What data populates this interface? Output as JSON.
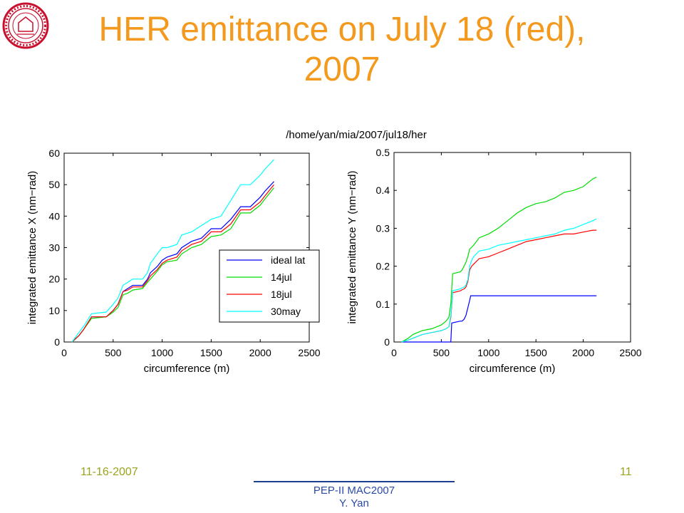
{
  "slide": {
    "title": "HER emittance on July 18 (red), 2007",
    "figure_title": "/home/yan/mia/2007/jul18/her",
    "footer_left": "11-16-2007",
    "footer_right": "11",
    "footer_center_line1": "PEP-II MAC2007",
    "footer_center_line2": "Y. Yan"
  },
  "colors": {
    "title": "#f39a1e",
    "footer_side": "#9aa41c",
    "footer_center": "#2b4aa8",
    "ideal lat": "#0000ff",
    "14jul": "#00dd00",
    "18jul": "#ff0000",
    "30may": "#00ffff",
    "logo": "#c8102e"
  },
  "logo": {
    "icon": "institution-seal-logo"
  },
  "chart_data": [
    {
      "type": "line",
      "xlabel": "circumference (m)",
      "ylabel": "integrated emittance X (nm−rad)",
      "xlim": [
        0,
        2500
      ],
      "ylim": [
        0,
        60
      ],
      "xticks": [
        "0",
        "500",
        "1000",
        "1500",
        "2000",
        "2500"
      ],
      "yticks": [
        "0",
        "10",
        "20",
        "30",
        "40",
        "50",
        "60"
      ],
      "grid": false,
      "legend": "lower-right",
      "series": [
        {
          "name": "ideal lat",
          "x": [
            80,
            150,
            200,
            280,
            430,
            500,
            550,
            600,
            650,
            700,
            800,
            850,
            880,
            950,
            1000,
            1050,
            1150,
            1200,
            1300,
            1400,
            1500,
            1600,
            1700,
            1800,
            1900,
            2000,
            2050,
            2140
          ],
          "values": [
            0,
            2,
            4,
            8,
            8,
            10,
            12,
            16,
            17,
            18,
            18,
            20,
            22,
            24,
            26,
            27,
            28,
            30,
            32,
            33,
            36,
            36,
            39,
            43,
            43,
            46,
            48,
            51
          ]
        },
        {
          "name": "14jul",
          "x": [
            80,
            150,
            200,
            280,
            430,
            500,
            550,
            600,
            650,
            700,
            800,
            850,
            880,
            950,
            1000,
            1050,
            1150,
            1200,
            1300,
            1400,
            1500,
            1600,
            1700,
            1800,
            1900,
            2000,
            2050,
            2140
          ],
          "values": [
            0,
            2,
            4,
            7.5,
            8,
            9.5,
            11,
            15,
            15.5,
            16.5,
            17,
            19,
            20,
            22.5,
            24.5,
            25.5,
            26,
            28,
            30,
            31,
            33.5,
            34,
            36,
            41,
            41,
            43.5,
            45.5,
            49
          ]
        },
        {
          "name": "18jul",
          "x": [
            80,
            150,
            200,
            280,
            430,
            500,
            550,
            600,
            650,
            700,
            800,
            850,
            880,
            950,
            1000,
            1050,
            1150,
            1200,
            1300,
            1400,
            1500,
            1600,
            1700,
            1800,
            1900,
            2000,
            2050,
            2140
          ],
          "values": [
            0,
            2,
            4,
            8,
            8,
            10,
            12,
            16,
            16.5,
            17.5,
            17.5,
            19.5,
            21,
            23,
            25,
            26,
            27,
            29,
            31,
            32,
            35,
            35,
            37.5,
            42,
            42,
            44.5,
            46.5,
            50
          ]
        },
        {
          "name": "30may",
          "x": [
            80,
            150,
            200,
            280,
            430,
            500,
            550,
            600,
            650,
            700,
            800,
            850,
            880,
            950,
            1000,
            1050,
            1150,
            1200,
            1300,
            1400,
            1500,
            1600,
            1700,
            1800,
            1900,
            2000,
            2050,
            2140
          ],
          "values": [
            0,
            3,
            5,
            9,
            9.5,
            12,
            14,
            18,
            19,
            20,
            20,
            22,
            25,
            28,
            30,
            30,
            31,
            34,
            35,
            37,
            39,
            40,
            45,
            50,
            50,
            53,
            55,
            58
          ]
        }
      ]
    },
    {
      "type": "line",
      "xlabel": "circumference (m)",
      "ylabel": "integrated emittance Y (nm−rad)",
      "xlim": [
        0,
        2500
      ],
      "ylim": [
        0,
        0.5
      ],
      "xticks": [
        "0",
        "500",
        "1000",
        "1500",
        "2000",
        "2500"
      ],
      "yticks": [
        "0",
        "0.1",
        "0.2",
        "0.3",
        "0.4",
        "0.5"
      ],
      "grid": false,
      "series": [
        {
          "name": "ideal lat",
          "x": [
            80,
            570,
            600,
            610,
            700,
            720,
            740,
            760,
            780,
            800,
            810,
            2140
          ],
          "values": [
            0,
            0,
            0,
            0.05,
            0.055,
            0.055,
            0.06,
            0.07,
            0.09,
            0.11,
            0.122,
            0.122
          ]
        },
        {
          "name": "14jul",
          "x": [
            80,
            150,
            200,
            300,
            400,
            500,
            550,
            580,
            600,
            610,
            620,
            700,
            720,
            740,
            760,
            780,
            800,
            820,
            840,
            900,
            1000,
            1100,
            1200,
            1300,
            1400,
            1500,
            1600,
            1700,
            1800,
            1900,
            2000,
            2100,
            2140
          ],
          "values": [
            0,
            0.01,
            0.02,
            0.03,
            0.035,
            0.045,
            0.055,
            0.065,
            0.1,
            0.14,
            0.18,
            0.185,
            0.19,
            0.2,
            0.21,
            0.225,
            0.245,
            0.25,
            0.255,
            0.275,
            0.285,
            0.3,
            0.32,
            0.34,
            0.355,
            0.365,
            0.37,
            0.38,
            0.395,
            0.4,
            0.41,
            0.43,
            0.435
          ]
        },
        {
          "name": "18jul",
          "x": [
            80,
            150,
            200,
            300,
            400,
            500,
            550,
            580,
            600,
            610,
            620,
            700,
            720,
            740,
            760,
            780,
            800,
            820,
            840,
            900,
            1000,
            1100,
            1200,
            1300,
            1400,
            1500,
            1600,
            1700,
            1800,
            1900,
            2000,
            2100,
            2140
          ],
          "values": [
            0,
            0.005,
            0.01,
            0.02,
            0.025,
            0.03,
            0.035,
            0.04,
            0.065,
            0.095,
            0.13,
            0.135,
            0.138,
            0.14,
            0.145,
            0.16,
            0.19,
            0.2,
            0.205,
            0.22,
            0.225,
            0.235,
            0.245,
            0.255,
            0.265,
            0.27,
            0.275,
            0.28,
            0.285,
            0.285,
            0.29,
            0.295,
            0.295
          ]
        },
        {
          "name": "30may",
          "x": [
            80,
            150,
            200,
            300,
            400,
            500,
            550,
            580,
            600,
            610,
            620,
            700,
            720,
            740,
            760,
            780,
            800,
            820,
            840,
            900,
            1000,
            1100,
            1200,
            1300,
            1400,
            1500,
            1600,
            1700,
            1800,
            1900,
            2000,
            2100,
            2140
          ],
          "values": [
            0,
            0.005,
            0.01,
            0.02,
            0.025,
            0.03,
            0.035,
            0.04,
            0.07,
            0.1,
            0.135,
            0.14,
            0.143,
            0.145,
            0.15,
            0.165,
            0.2,
            0.215,
            0.225,
            0.24,
            0.245,
            0.255,
            0.26,
            0.265,
            0.27,
            0.275,
            0.28,
            0.285,
            0.295,
            0.3,
            0.31,
            0.32,
            0.325
          ]
        }
      ]
    }
  ]
}
